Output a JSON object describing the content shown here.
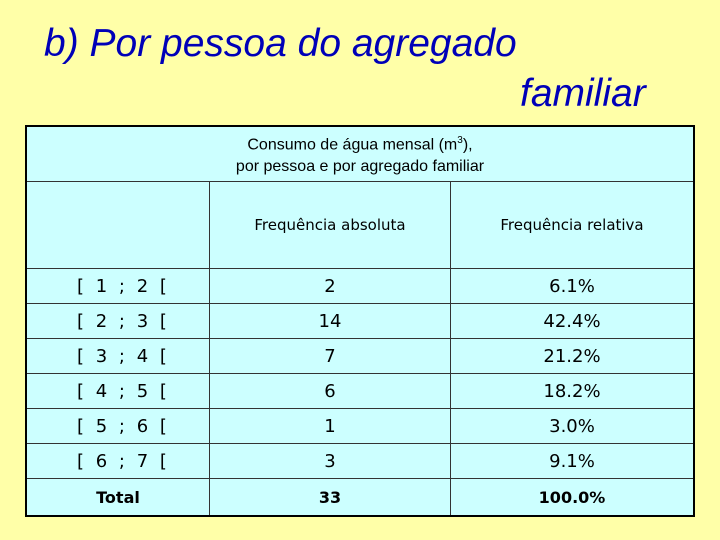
{
  "title": {
    "line1": "b) Por pessoa do agregado",
    "line2": "familiar"
  },
  "table": {
    "caption_line1_pre": "Consumo de água mensal (m",
    "caption_sup": "3",
    "caption_line1_post": "),",
    "caption_line2": "por pessoa e por agregado familiar",
    "col_headers": [
      "Frequência absoluta",
      "Frequência relativa"
    ],
    "rows": [
      {
        "class": "[ 1 ; 2 [",
        "abs": "2",
        "rel": "6.1%"
      },
      {
        "class": "[ 2 ; 3 [",
        "abs": "14",
        "rel": "42.4%"
      },
      {
        "class": "[ 3 ; 4 [",
        "abs": "7",
        "rel": "21.2%"
      },
      {
        "class": "[ 4 ; 5 [",
        "abs": "6",
        "rel": "18.2%"
      },
      {
        "class": "[ 5 ; 6 [",
        "abs": "1",
        "rel": "3.0%"
      },
      {
        "class": "[ 6 ; 7 [",
        "abs": "3",
        "rel": "9.1%"
      }
    ],
    "total": {
      "label": "Total",
      "abs": "33",
      "rel": "100.0%"
    }
  },
  "colors": {
    "background": "#FFFFA8",
    "title": "#0000B8",
    "cell": "#CCFFFF"
  }
}
